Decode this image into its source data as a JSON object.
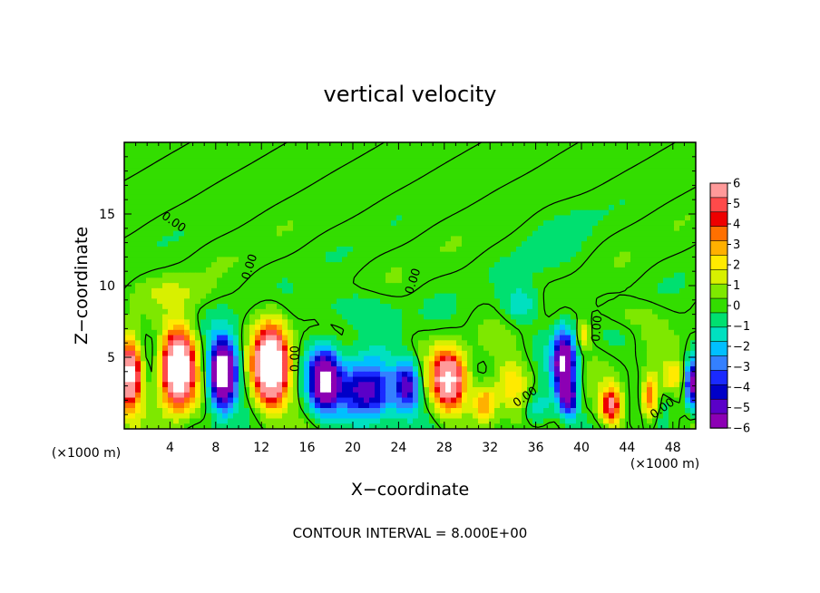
{
  "chart_data": {
    "type": "heatmap",
    "title": "vertical velocity",
    "xlabel": "X−coordinate",
    "ylabel": "Z−coordinate",
    "x_unit_label": "(×1000 m)",
    "xlim": [
      0,
      50
    ],
    "ylim": [
      0,
      20
    ],
    "x_ticks": [
      4,
      8,
      12,
      16,
      20,
      24,
      28,
      32,
      36,
      40,
      44,
      48
    ],
    "y_ticks": [
      5,
      10,
      15
    ],
    "x_tick_labels": [
      "4",
      "8",
      "12",
      "16",
      "20",
      "24",
      "28",
      "32",
      "36",
      "40",
      "44",
      "48"
    ],
    "y_tick_labels": [
      "5",
      "10",
      "15"
    ],
    "footer": "CONTOUR INTERVAL = 8.000E+00",
    "colorbar": {
      "min": -6,
      "max": 6,
      "labels": [
        "6",
        "5",
        "4",
        "3",
        "2",
        "1",
        "0",
        "−1",
        "−2",
        "−3",
        "−4",
        "−5",
        "−6"
      ],
      "label_values": [
        6,
        5,
        4,
        3,
        2,
        1,
        0,
        -1,
        -2,
        -3,
        -4,
        -5,
        -6
      ],
      "colors": [
        "#ff9a9a",
        "#ff4a4a",
        "#ee0000",
        "#ff7000",
        "#ffb000",
        "#ffea00",
        "#d8f000",
        "#7ee800",
        "#33dd00",
        "#00e070",
        "#00e0c0",
        "#00bfff",
        "#3480ff",
        "#1a2aff",
        "#0000c8",
        "#5a00c8",
        "#8c00b4"
      ]
    },
    "contour_labels": [
      {
        "text": "0.00",
        "x": 4.3,
        "y": 14.4,
        "angle": 35
      },
      {
        "text": "0.00",
        "x": 11.0,
        "y": 11.3,
        "angle": -72
      },
      {
        "text": "0.00",
        "x": 15.0,
        "y": 4.9,
        "angle": -90
      },
      {
        "text": "0.00",
        "x": 25.3,
        "y": 10.3,
        "angle": -72
      },
      {
        "text": "0.00",
        "x": 35.1,
        "y": 2.2,
        "angle": -35
      },
      {
        "text": "0.00",
        "x": 41.4,
        "y": 7.0,
        "angle": -85
      },
      {
        "text": "0.00",
        "x": 47.1,
        "y": 1.4,
        "angle": -35
      }
    ],
    "features": [
      {
        "x": 0.5,
        "z": 3.8,
        "sx": 0.9,
        "sz": 2.2,
        "w": 9
      },
      {
        "x": 4.7,
        "z": 4.2,
        "sx": 1.35,
        "sz": 2.5,
        "w": 11
      },
      {
        "x": 8.6,
        "z": 3.8,
        "sx": 1.1,
        "sz": 2.3,
        "w": -10
      },
      {
        "x": 12.8,
        "z": 4.3,
        "sx": 1.4,
        "sz": 2.6,
        "w": 11
      },
      {
        "x": 17.5,
        "z": 3.4,
        "sx": 1.3,
        "sz": 2.1,
        "w": -7.5
      },
      {
        "x": 21.2,
        "z": 2.6,
        "sx": 2.3,
        "sz": 2.0,
        "w": -6
      },
      {
        "x": 24.8,
        "z": 3.0,
        "sx": 1.0,
        "sz": 1.6,
        "w": -5
      },
      {
        "x": 28.4,
        "z": 3.4,
        "sx": 1.4,
        "sz": 2.0,
        "w": 8
      },
      {
        "x": 31.5,
        "z": 1.8,
        "sx": 1.0,
        "sz": 1.3,
        "w": 4
      },
      {
        "x": 33.9,
        "z": 3.0,
        "sx": 1.4,
        "sz": 1.8,
        "w": 2.5
      },
      {
        "x": 36.2,
        "z": 1.5,
        "sx": 1.2,
        "sz": 1.3,
        "w": -2.2
      },
      {
        "x": 38.5,
        "z": 4.5,
        "sx": 0.9,
        "sz": 2.2,
        "w": -8
      },
      {
        "x": 38.9,
        "z": 2.0,
        "sx": 0.7,
        "sz": 1.1,
        "w": -5
      },
      {
        "x": 40.2,
        "z": 6.6,
        "sx": 0.4,
        "sz": 0.8,
        "w": 4
      },
      {
        "x": 42.6,
        "z": 1.6,
        "sx": 0.8,
        "sz": 1.2,
        "w": 6
      },
      {
        "x": 46.0,
        "z": 2.2,
        "sx": 0.6,
        "sz": 1.5,
        "w": 5
      },
      {
        "x": 48.0,
        "z": 3.6,
        "sx": 0.9,
        "sz": 1.0,
        "w": 2.5
      },
      {
        "x": 49.8,
        "z": 3.2,
        "sx": 0.6,
        "sz": 1.6,
        "w": -7
      },
      {
        "x": 34.6,
        "z": 8.7,
        "sx": 1.5,
        "sz": 1.2,
        "w": -1.8
      },
      {
        "x": 20.0,
        "z": 8.4,
        "sx": 4.0,
        "sz": 1.2,
        "w": -1.0
      },
      {
        "x": 37.5,
        "z": 12.5,
        "sx": 3.0,
        "sz": 3.5,
        "w": -0.4
      },
      {
        "x": 4.0,
        "z": 9.5,
        "sx": 3.0,
        "sz": 1.0,
        "w": 1.0
      },
      {
        "x": 44.0,
        "z": 8.0,
        "sx": 3.0,
        "sz": 1.0,
        "w": 0.8
      }
    ]
  }
}
